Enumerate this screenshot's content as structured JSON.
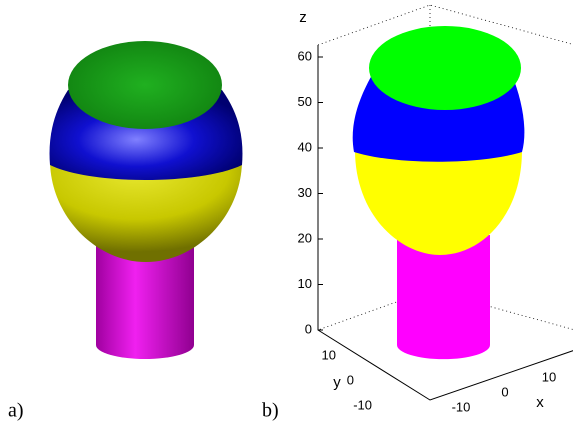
{
  "panel_a": {
    "label": "a)"
  },
  "panel_b": {
    "label": "b)",
    "z_axis": {
      "label": "z",
      "ticks": [
        0,
        10,
        20,
        30,
        40,
        50,
        60
      ]
    },
    "y_axis": {
      "label": "y",
      "ticks": [
        10,
        0,
        -10
      ]
    },
    "x_axis": {
      "label": "x",
      "ticks": [
        -10,
        0,
        10
      ]
    }
  }
}
